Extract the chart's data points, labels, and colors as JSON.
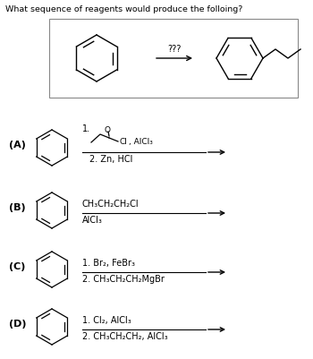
{
  "title": "What sequence of reagents would produce the folloing?",
  "background_color": "#ffffff",
  "text_color": "#000000",
  "reaction_arrow_label": "???",
  "figsize": [
    3.5,
    4.02
  ],
  "dpi": 100,
  "options": [
    {
      "label": "(A)",
      "line1": "1.",
      "line2": "2. Zn, HCl",
      "reagent_text": ", AlCl₃"
    },
    {
      "label": "(B)",
      "line1": "CH₃CH₂CH₂Cl",
      "line2": "AlCl₃"
    },
    {
      "label": "(C)",
      "line1": "1. Br₂, FeBr₃",
      "line2": "2. CH₃CH₂CH₂MgBr"
    },
    {
      "label": "(D)",
      "line1": "1. Cl₂, AlCl₃",
      "line2": "2. CH₃CH₂CH₂, AlCl₃"
    }
  ]
}
